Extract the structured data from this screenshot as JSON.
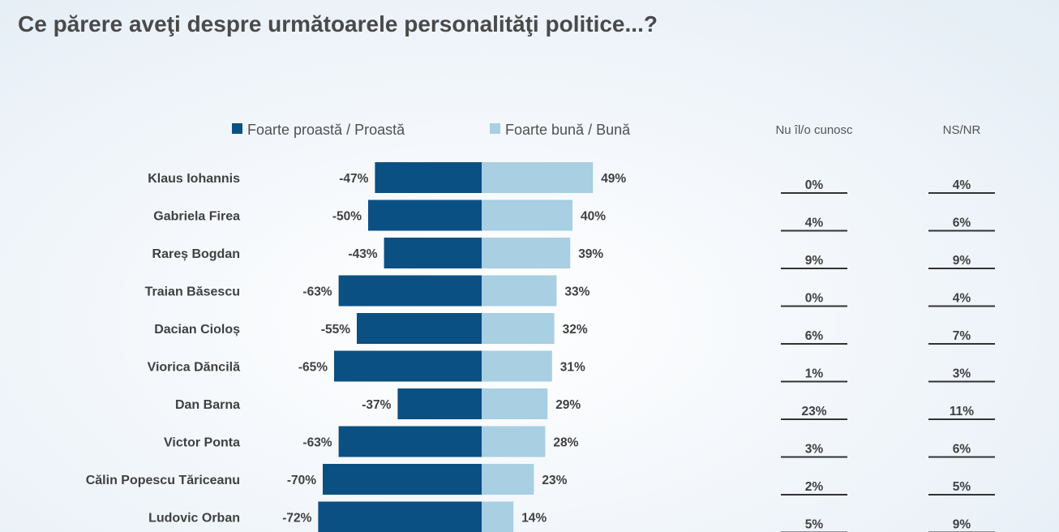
{
  "title": "Ce părere aveţi despre următoarele personalităţi politice...?",
  "colors": {
    "negative": "#0b5083",
    "positive": "#a8cfe2"
  },
  "chart_data": {
    "type": "bar",
    "orientation": "horizontal-diverging",
    "legend": [
      "Foarte proastă / Proastă",
      "Foarte bună / Bună"
    ],
    "categories": [
      "Klaus Iohannis",
      "Gabriela Firea",
      "Rareș Bogdan",
      "Traian Băsescu",
      "Dacian Cioloș",
      "Viorica Dăncilă",
      "Dan Barna",
      "Victor Ponta",
      "Călin Popescu Tăriceanu",
      "Ludovic Orban"
    ],
    "series": [
      {
        "name": "Foarte proastă / Proastă",
        "values": [
          -47,
          -50,
          -43,
          -63,
          -55,
          -65,
          -37,
          -63,
          -70,
          -72
        ],
        "labels": [
          "-47%",
          "-50%",
          "-43%",
          "-63%",
          "-55%",
          "-65%",
          "-37%",
          "-63%",
          "-70%",
          "-72%"
        ]
      },
      {
        "name": "Foarte bună / Bună",
        "values": [
          49,
          40,
          39,
          33,
          32,
          31,
          29,
          28,
          23,
          14
        ],
        "labels": [
          "49%",
          "40%",
          "39%",
          "33%",
          "32%",
          "31%",
          "29%",
          "28%",
          "23%",
          "14%"
        ]
      }
    ],
    "side_columns": [
      {
        "header": "Nu îl/o cunosc",
        "values": [
          "0%",
          "4%",
          "9%",
          "0%",
          "6%",
          "1%",
          "23%",
          "3%",
          "2%",
          "5%"
        ]
      },
      {
        "header": "NS/NR",
        "values": [
          "4%",
          "6%",
          "9%",
          "4%",
          "7%",
          "3%",
          "11%",
          "6%",
          "5%",
          "9%"
        ]
      }
    ]
  }
}
